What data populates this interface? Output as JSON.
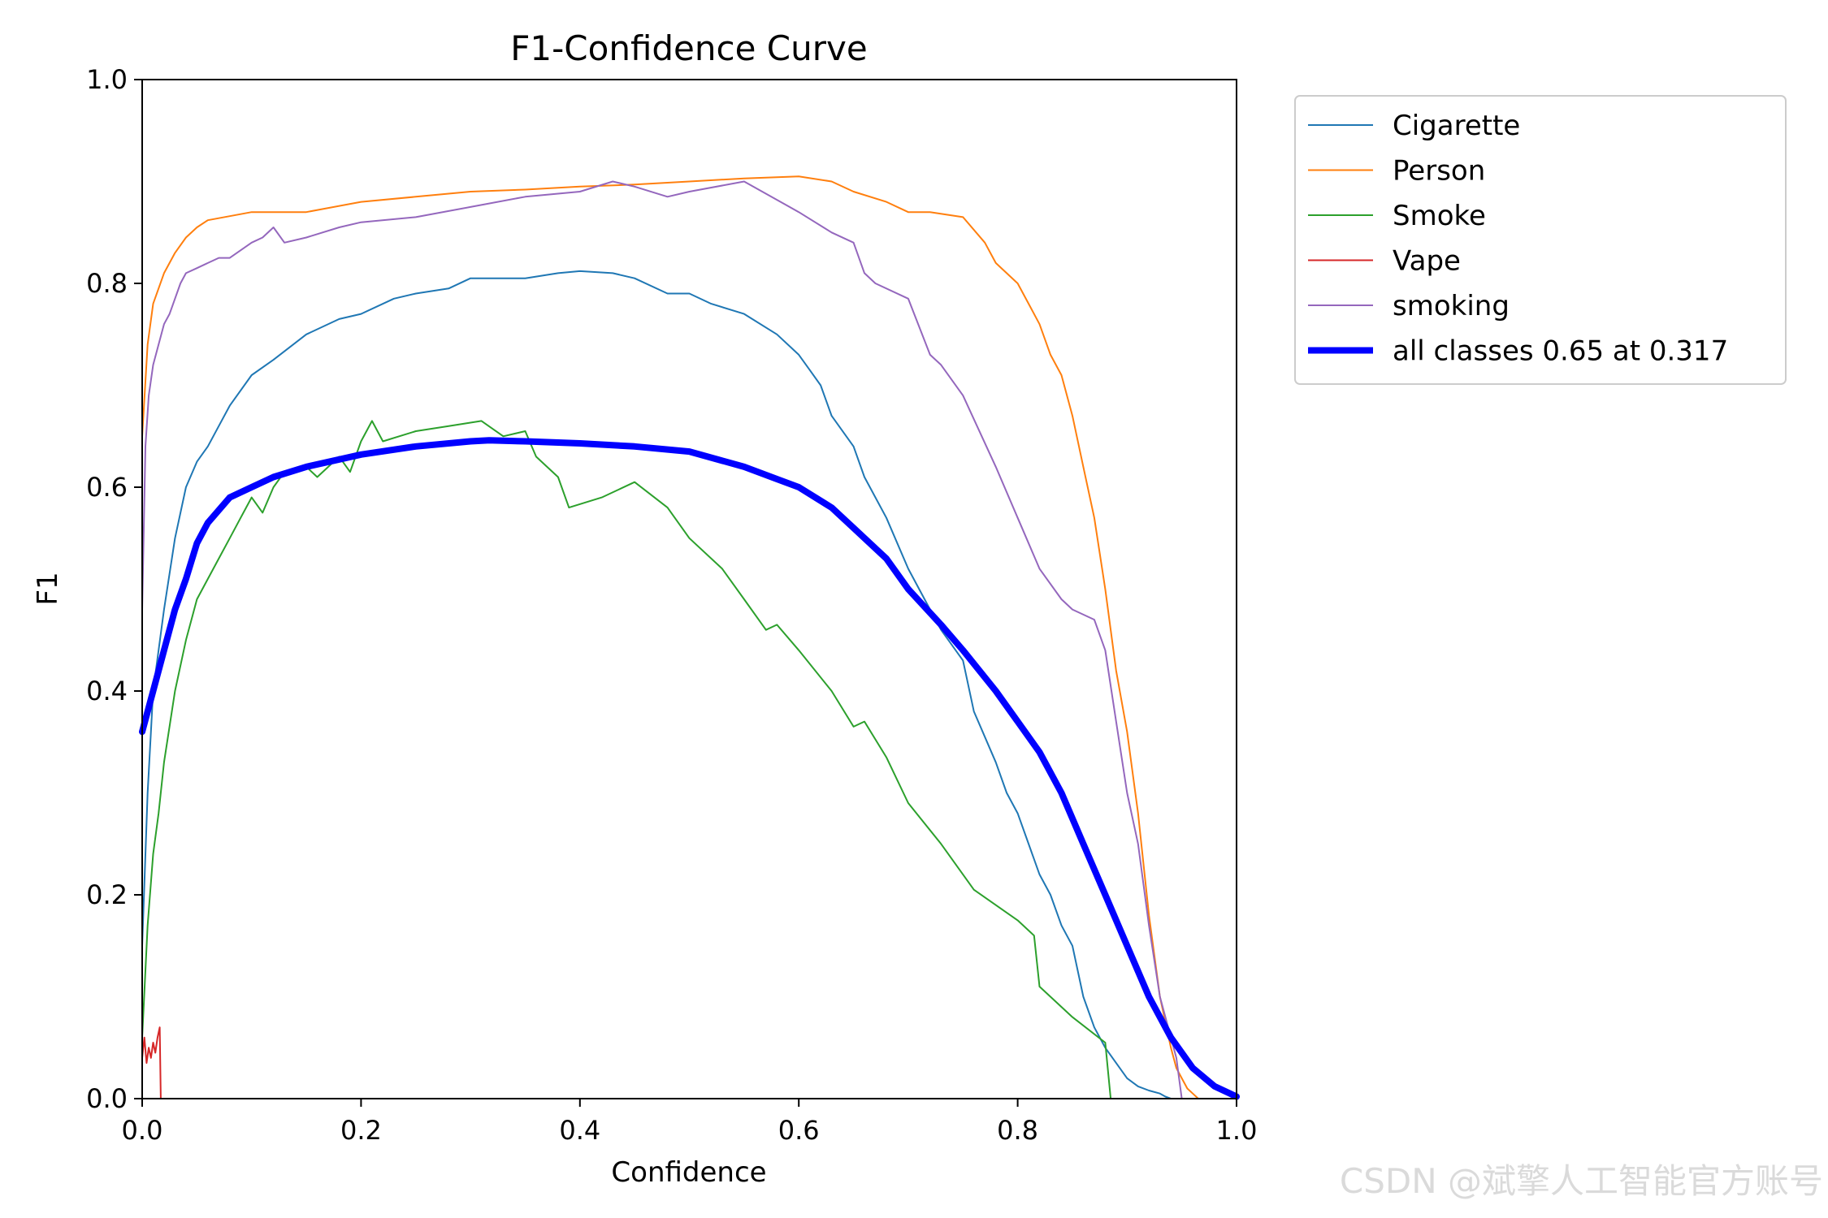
{
  "chart_data": {
    "type": "line",
    "title": "F1-Confidence Curve",
    "xlabel": "Confidence",
    "ylabel": "F1",
    "xlim": [
      0.0,
      1.0
    ],
    "ylim": [
      0.0,
      1.0
    ],
    "x_ticks": [
      "0.0",
      "0.2",
      "0.4",
      "0.6",
      "0.8",
      "1.0"
    ],
    "y_ticks": [
      "0.0",
      "0.2",
      "0.4",
      "0.6",
      "0.8",
      "1.0"
    ],
    "grid": false,
    "legend_position": "outside-top-right",
    "series": [
      {
        "name": "Cigarette",
        "color": "#1f77b4",
        "width": 2,
        "x": [
          0.0,
          0.005,
          0.01,
          0.02,
          0.03,
          0.04,
          0.05,
          0.06,
          0.07,
          0.08,
          0.1,
          0.12,
          0.15,
          0.18,
          0.2,
          0.23,
          0.25,
          0.28,
          0.3,
          0.32,
          0.35,
          0.38,
          0.4,
          0.43,
          0.45,
          0.48,
          0.5,
          0.52,
          0.55,
          0.58,
          0.6,
          0.61,
          0.62,
          0.63,
          0.65,
          0.66,
          0.68,
          0.7,
          0.72,
          0.73,
          0.75,
          0.76,
          0.78,
          0.79,
          0.8,
          0.82,
          0.83,
          0.84,
          0.85,
          0.86,
          0.87,
          0.88,
          0.89,
          0.9,
          0.91,
          0.92,
          0.93,
          0.935,
          0.94
        ],
        "y": [
          0.15,
          0.3,
          0.4,
          0.48,
          0.55,
          0.6,
          0.625,
          0.64,
          0.66,
          0.68,
          0.71,
          0.725,
          0.75,
          0.765,
          0.77,
          0.785,
          0.79,
          0.795,
          0.805,
          0.805,
          0.805,
          0.81,
          0.812,
          0.81,
          0.805,
          0.79,
          0.79,
          0.78,
          0.77,
          0.75,
          0.73,
          0.715,
          0.7,
          0.67,
          0.64,
          0.61,
          0.57,
          0.52,
          0.48,
          0.46,
          0.43,
          0.38,
          0.33,
          0.3,
          0.28,
          0.22,
          0.2,
          0.17,
          0.15,
          0.1,
          0.07,
          0.05,
          0.035,
          0.02,
          0.012,
          0.008,
          0.005,
          0.002,
          0.0
        ]
      },
      {
        "name": "Person",
        "color": "#ff7f0e",
        "width": 2,
        "x": [
          0.0,
          0.005,
          0.01,
          0.02,
          0.03,
          0.04,
          0.05,
          0.06,
          0.08,
          0.1,
          0.15,
          0.2,
          0.25,
          0.3,
          0.35,
          0.4,
          0.45,
          0.5,
          0.55,
          0.6,
          0.63,
          0.65,
          0.68,
          0.7,
          0.72,
          0.75,
          0.77,
          0.78,
          0.8,
          0.81,
          0.82,
          0.83,
          0.84,
          0.85,
          0.86,
          0.87,
          0.88,
          0.89,
          0.9,
          0.91,
          0.92,
          0.93,
          0.94,
          0.945,
          0.95,
          0.955,
          0.96,
          0.965
        ],
        "y": [
          0.65,
          0.74,
          0.78,
          0.81,
          0.83,
          0.845,
          0.855,
          0.862,
          0.866,
          0.87,
          0.87,
          0.88,
          0.885,
          0.89,
          0.892,
          0.895,
          0.897,
          0.9,
          0.903,
          0.905,
          0.9,
          0.89,
          0.88,
          0.87,
          0.87,
          0.865,
          0.84,
          0.82,
          0.8,
          0.78,
          0.76,
          0.73,
          0.71,
          0.67,
          0.62,
          0.57,
          0.5,
          0.42,
          0.36,
          0.28,
          0.18,
          0.1,
          0.05,
          0.03,
          0.02,
          0.01,
          0.005,
          0.0
        ]
      },
      {
        "name": "Smoke",
        "color": "#2ca02c",
        "width": 2,
        "x": [
          0.0,
          0.005,
          0.01,
          0.015,
          0.02,
          0.03,
          0.04,
          0.05,
          0.06,
          0.07,
          0.08,
          0.09,
          0.1,
          0.11,
          0.12,
          0.13,
          0.15,
          0.16,
          0.18,
          0.19,
          0.2,
          0.21,
          0.22,
          0.25,
          0.28,
          0.31,
          0.33,
          0.35,
          0.36,
          0.38,
          0.39,
          0.42,
          0.45,
          0.48,
          0.5,
          0.53,
          0.55,
          0.57,
          0.58,
          0.6,
          0.63,
          0.65,
          0.66,
          0.68,
          0.7,
          0.73,
          0.76,
          0.8,
          0.815,
          0.82,
          0.85,
          0.88,
          0.885
        ],
        "y": [
          0.06,
          0.17,
          0.24,
          0.28,
          0.33,
          0.4,
          0.45,
          0.49,
          0.51,
          0.53,
          0.55,
          0.57,
          0.59,
          0.575,
          0.6,
          0.615,
          0.62,
          0.61,
          0.63,
          0.615,
          0.645,
          0.665,
          0.645,
          0.655,
          0.66,
          0.665,
          0.65,
          0.655,
          0.63,
          0.61,
          0.58,
          0.59,
          0.605,
          0.58,
          0.55,
          0.52,
          0.49,
          0.46,
          0.465,
          0.44,
          0.4,
          0.365,
          0.37,
          0.335,
          0.29,
          0.25,
          0.205,
          0.175,
          0.16,
          0.11,
          0.08,
          0.055,
          0.0
        ]
      },
      {
        "name": "Vape",
        "color": "#d62728",
        "width": 2,
        "x": [
          0.0,
          0.002,
          0.004,
          0.006,
          0.008,
          0.01,
          0.012,
          0.014,
          0.016,
          0.017,
          0.02,
          0.04,
          0.1,
          0.2,
          0.4,
          0.6,
          0.8,
          1.0
        ],
        "y": [
          0.04,
          0.06,
          0.035,
          0.05,
          0.04,
          0.055,
          0.045,
          0.06,
          0.07,
          0.0,
          0.0,
          0.0,
          0.0,
          0.0,
          0.0,
          0.0,
          0.0,
          0.0
        ]
      },
      {
        "name": "smoking",
        "color": "#9467bd",
        "width": 2,
        "x": [
          0.0,
          0.003,
          0.006,
          0.01,
          0.015,
          0.02,
          0.025,
          0.03,
          0.035,
          0.04,
          0.05,
          0.06,
          0.07,
          0.08,
          0.1,
          0.11,
          0.12,
          0.13,
          0.15,
          0.18,
          0.2,
          0.25,
          0.3,
          0.35,
          0.4,
          0.43,
          0.45,
          0.48,
          0.5,
          0.55,
          0.6,
          0.63,
          0.65,
          0.66,
          0.67,
          0.7,
          0.72,
          0.73,
          0.75,
          0.78,
          0.8,
          0.82,
          0.84,
          0.85,
          0.87,
          0.88,
          0.89,
          0.9,
          0.91,
          0.92,
          0.93,
          0.94,
          0.945,
          0.95
        ],
        "y": [
          0.48,
          0.64,
          0.69,
          0.72,
          0.74,
          0.76,
          0.77,
          0.785,
          0.8,
          0.81,
          0.815,
          0.82,
          0.825,
          0.825,
          0.84,
          0.845,
          0.855,
          0.84,
          0.845,
          0.855,
          0.86,
          0.865,
          0.875,
          0.885,
          0.89,
          0.9,
          0.895,
          0.885,
          0.89,
          0.9,
          0.87,
          0.85,
          0.84,
          0.81,
          0.8,
          0.785,
          0.73,
          0.72,
          0.69,
          0.62,
          0.57,
          0.52,
          0.49,
          0.48,
          0.47,
          0.44,
          0.37,
          0.3,
          0.25,
          0.17,
          0.1,
          0.06,
          0.04,
          0.0
        ]
      },
      {
        "name": "all classes 0.65 at 0.317",
        "color": "#0000ff",
        "width": 8,
        "x": [
          0.0,
          0.01,
          0.02,
          0.03,
          0.04,
          0.05,
          0.06,
          0.08,
          0.1,
          0.12,
          0.15,
          0.2,
          0.25,
          0.3,
          0.317,
          0.35,
          0.4,
          0.45,
          0.5,
          0.55,
          0.58,
          0.6,
          0.63,
          0.65,
          0.68,
          0.7,
          0.73,
          0.75,
          0.78,
          0.8,
          0.82,
          0.84,
          0.86,
          0.88,
          0.9,
          0.92,
          0.94,
          0.96,
          0.98,
          1.0
        ],
        "y": [
          0.36,
          0.4,
          0.44,
          0.48,
          0.51,
          0.545,
          0.565,
          0.59,
          0.6,
          0.61,
          0.62,
          0.632,
          0.64,
          0.645,
          0.646,
          0.645,
          0.643,
          0.64,
          0.635,
          0.62,
          0.608,
          0.6,
          0.58,
          0.56,
          0.53,
          0.5,
          0.465,
          0.44,
          0.4,
          0.37,
          0.34,
          0.3,
          0.25,
          0.2,
          0.15,
          0.1,
          0.06,
          0.03,
          0.012,
          0.002
        ]
      }
    ]
  },
  "watermark": "CSDN @斌擎人工智能官方账号"
}
